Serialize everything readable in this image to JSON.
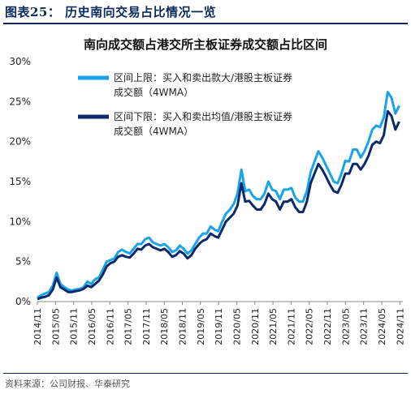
{
  "figure_label": "图表25：  历史南向交易占比情况一览",
  "source": "资料来源：公司财报、华泰研究",
  "chart_data": {
    "type": "line",
    "title": "南向成交额占港交所主板证券成交额占比区间",
    "xlabel": "",
    "ylabel": "",
    "ylim": [
      0,
      0.3
    ],
    "yticks": [
      0,
      0.05,
      0.1,
      0.15,
      0.2,
      0.25,
      0.3
    ],
    "ytick_labels": [
      "0%",
      "5%",
      "10%",
      "15%",
      "20%",
      "25%",
      "30%"
    ],
    "xticks": [
      "2014/11",
      "2015/05",
      "2015/11",
      "2016/05",
      "2016/11",
      "2017/05",
      "2017/11",
      "2018/05",
      "2018/11",
      "2019/05",
      "2019/11",
      "2020/05",
      "2020/11",
      "2021/05",
      "2021/11",
      "2022/05",
      "2022/11",
      "2023/05",
      "2023/11",
      "2024/05",
      "2024/11"
    ],
    "legend_position": "top-left",
    "grid": false,
    "x_start": "2014/11",
    "x_step_months": 1,
    "series": [
      {
        "name": "区间上限：买入和卖出款大/港股主板证券成交额（4WMA）",
        "color": "#1aa3e8",
        "values": [
          0.005,
          0.008,
          0.01,
          0.012,
          0.02,
          0.036,
          0.022,
          0.018,
          0.015,
          0.014,
          0.015,
          0.016,
          0.018,
          0.025,
          0.022,
          0.028,
          0.03,
          0.04,
          0.05,
          0.052,
          0.054,
          0.062,
          0.065,
          0.062,
          0.06,
          0.066,
          0.072,
          0.072,
          0.078,
          0.08,
          0.074,
          0.072,
          0.07,
          0.072,
          0.068,
          0.062,
          0.064,
          0.07,
          0.066,
          0.06,
          0.064,
          0.072,
          0.08,
          0.085,
          0.085,
          0.094,
          0.09,
          0.088,
          0.1,
          0.11,
          0.115,
          0.122,
          0.135,
          0.165,
          0.138,
          0.14,
          0.132,
          0.128,
          0.128,
          0.135,
          0.15,
          0.14,
          0.138,
          0.128,
          0.14,
          0.14,
          0.142,
          0.13,
          0.125,
          0.125,
          0.138,
          0.162,
          0.175,
          0.188,
          0.18,
          0.17,
          0.16,
          0.15,
          0.148,
          0.16,
          0.176,
          0.175,
          0.19,
          0.19,
          0.18,
          0.188,
          0.2,
          0.215,
          0.22,
          0.218,
          0.23,
          0.262,
          0.255,
          0.235,
          0.245
        ]
      },
      {
        "name": "区间下限：买入和卖出均值/港股主板证券成交额（4WMA）",
        "color": "#0b2a6b",
        "values": [
          0.003,
          0.005,
          0.006,
          0.008,
          0.015,
          0.03,
          0.018,
          0.015,
          0.012,
          0.012,
          0.013,
          0.014,
          0.016,
          0.02,
          0.018,
          0.022,
          0.026,
          0.034,
          0.044,
          0.048,
          0.05,
          0.056,
          0.058,
          0.056,
          0.055,
          0.06,
          0.066,
          0.065,
          0.07,
          0.072,
          0.068,
          0.066,
          0.064,
          0.066,
          0.062,
          0.056,
          0.058,
          0.063,
          0.06,
          0.054,
          0.058,
          0.066,
          0.072,
          0.076,
          0.078,
          0.085,
          0.082,
          0.08,
          0.09,
          0.1,
          0.105,
          0.11,
          0.12,
          0.148,
          0.125,
          0.126,
          0.12,
          0.115,
          0.115,
          0.122,
          0.135,
          0.128,
          0.125,
          0.115,
          0.125,
          0.125,
          0.128,
          0.118,
          0.112,
          0.112,
          0.125,
          0.148,
          0.16,
          0.172,
          0.165,
          0.156,
          0.146,
          0.138,
          0.136,
          0.146,
          0.16,
          0.16,
          0.172,
          0.172,
          0.165,
          0.172,
          0.182,
          0.196,
          0.2,
          0.198,
          0.208,
          0.238,
          0.232,
          0.215,
          0.225
        ]
      }
    ]
  }
}
